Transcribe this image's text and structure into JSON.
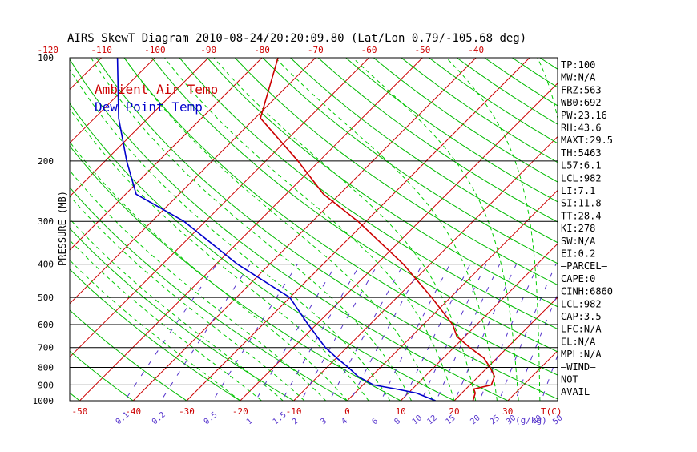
{
  "title": "AIRS SkewT Diagram 2010-08-24/20:20:09.80 (Lat/Lon 0.79/-105.68 deg)",
  "colors": {
    "isotherm": "#cc0000",
    "dry_adiabat": "#00bb00",
    "moist_adiabat": "#00cc00",
    "mixing_ratio": "#5533cc",
    "temperature": "#cc0000",
    "dewpoint": "#0000cc",
    "text": "#000000"
  },
  "chart_data": {
    "type": "skewT",
    "title": "AIRS SkewT Diagram 2010-08-24/20:20:09.80 (Lat/Lon 0.79/-105.68 deg)",
    "ylabel": "PRESSURE (MB)",
    "xlabel_temperature": "T(C)",
    "xlabel_mixing_ratio": "(g/kg)",
    "pressure_ticks": [
      100,
      200,
      300,
      400,
      500,
      600,
      700,
      800,
      900,
      1000
    ],
    "pressure_lines": [
      200,
      300,
      400,
      500,
      600,
      700,
      800,
      900,
      1000
    ],
    "top_temperature_ticks": [
      "-120",
      "-110",
      "-100",
      "-90",
      "-80",
      "-70",
      "-60",
      "-50",
      "-40"
    ],
    "bottom_temperature_ticks": [
      "-50",
      "-40",
      "-30",
      "-20",
      "-10",
      "0",
      "10",
      "20",
      "30"
    ],
    "mixing_ratio_ticks": [
      "0.1",
      "0.2",
      "0.5",
      "1",
      "1.5",
      "2",
      "3",
      "4",
      "6",
      "8",
      "10",
      "12",
      "15",
      "20",
      "25",
      "30",
      "40",
      "50"
    ],
    "legend": [
      {
        "label": "Ambient Air Temp",
        "color": "#cc0000"
      },
      {
        "label": "Dew Point Temp",
        "color": "#0000cc"
      }
    ],
    "series": [
      {
        "name": "Ambient Air Temp",
        "points": [
          {
            "p": 1000,
            "t": 23.5
          },
          {
            "p": 950,
            "t": 22.5
          },
          {
            "p": 925,
            "t": 21.5
          },
          {
            "p": 900,
            "t": 24.0
          },
          {
            "p": 850,
            "t": 23.0
          },
          {
            "p": 800,
            "t": 20.5
          },
          {
            "p": 750,
            "t": 17.5
          },
          {
            "p": 700,
            "t": 13.0
          },
          {
            "p": 650,
            "t": 8.5
          },
          {
            "p": 600,
            "t": 5.5
          },
          {
            "p": 500,
            "t": -3.5
          },
          {
            "p": 400,
            "t": -15.0
          },
          {
            "p": 300,
            "t": -31.5
          },
          {
            "p": 250,
            "t": -43.0
          },
          {
            "p": 200,
            "t": -54.0
          },
          {
            "p": 150,
            "t": -69.0
          },
          {
            "p": 100,
            "t": -77.0
          }
        ]
      },
      {
        "name": "Dew Point Temp",
        "points": [
          {
            "p": 1000,
            "t": 16.5
          },
          {
            "p": 950,
            "t": 11.5
          },
          {
            "p": 925,
            "t": 7.0
          },
          {
            "p": 900,
            "t": 2.0
          },
          {
            "p": 850,
            "t": -2.5
          },
          {
            "p": 800,
            "t": -6.0
          },
          {
            "p": 750,
            "t": -10.0
          },
          {
            "p": 700,
            "t": -14.0
          },
          {
            "p": 600,
            "t": -21.5
          },
          {
            "p": 500,
            "t": -30.0
          },
          {
            "p": 400,
            "t": -46.0
          },
          {
            "p": 300,
            "t": -64.0
          },
          {
            "p": 250,
            "t": -78.0
          },
          {
            "p": 200,
            "t": -86.0
          },
          {
            "p": 150,
            "t": -95.5
          },
          {
            "p": 100,
            "t": -107.0
          }
        ]
      }
    ]
  },
  "indices": [
    "TP:100",
    "MW:N/A",
    "FRZ:563",
    "WB0:692",
    "PW:23.16",
    "RH:43.6",
    "MAXT:29.5",
    "TH:5463",
    "L57:6.1",
    "LCL:982",
    "LI:7.1",
    "SI:11.8",
    "TT:28.4",
    "KI:278",
    "SW:N/A",
    "EI:0.2",
    "—PARCEL—",
    "CAPE:0",
    "CINH:6860",
    "LCL:982",
    "CAP:3.5",
    "LFC:N/A",
    "EL:N/A",
    "MPL:N/A",
    "—WIND—",
    "NOT",
    "AVAIL"
  ]
}
